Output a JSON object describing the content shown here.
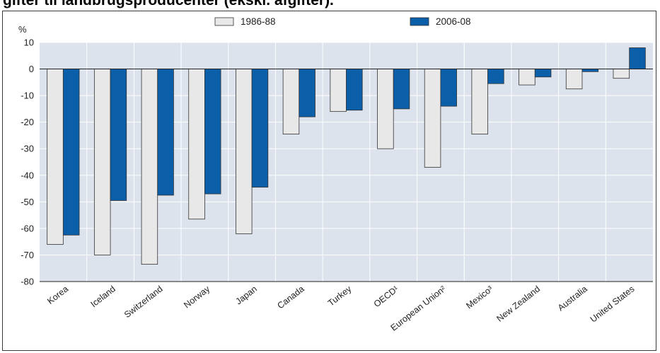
{
  "header": {
    "title_fragment": "gifter til landbrugsproducenter (ekskl. afgifter)."
  },
  "chart_data": {
    "type": "bar",
    "ylabel": "%",
    "ylim": [
      -80,
      10
    ],
    "yticks": [
      10,
      0,
      -10,
      -20,
      -30,
      -40,
      -50,
      -60,
      -70,
      -80
    ],
    "grid": true,
    "legend_position": "top",
    "categories": [
      "Korea",
      "Iceland",
      "Switzerland",
      "Norway",
      "Japan",
      "Canada",
      "Turkey",
      "OECD¹",
      "European Union²",
      "Mexico³",
      "New Zealand",
      "Australia",
      "United States"
    ],
    "series": [
      {
        "name": "1986-88",
        "color": "#e8e8e8",
        "values": [
          -66,
          -70,
          -73.5,
          -56.5,
          -62,
          -24.5,
          -16,
          -30,
          -37,
          -24.5,
          -6,
          -7.5,
          -3.5
        ]
      },
      {
        "name": "2006-08",
        "color": "#0b5ea8",
        "values": [
          -62.5,
          -49.5,
          -47.5,
          -47,
          -44.5,
          -18,
          -15.5,
          -15,
          -14,
          -5.5,
          -3,
          -1,
          8
        ]
      }
    ]
  },
  "colors": {
    "plot_background": "#dde3ec",
    "gridline": "#ffffff",
    "bar_outline": "#333333"
  }
}
